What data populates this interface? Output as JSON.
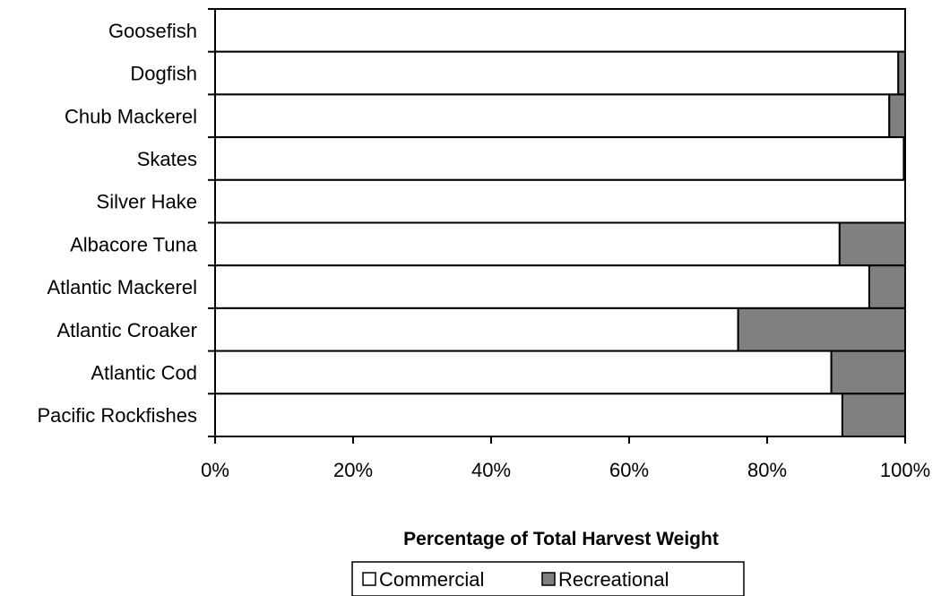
{
  "chart_data": {
    "type": "bar",
    "orientation": "horizontal",
    "stacked": "percent",
    "categories": [
      "Goosefish",
      "Dogfish",
      "Chub Mackerel",
      "Skates",
      "Silver Hake",
      "Albacore Tuna",
      "Atlantic Mackerel",
      "Atlantic Croaker",
      "Atlantic Cod",
      "Pacific Rockfishes"
    ],
    "series": [
      {
        "name": "Commercial",
        "color": "#ffffff",
        "values": [
          100,
          99,
          97.7,
          99.8,
          100,
          90.5,
          94.8,
          75.8,
          89.3,
          90.9
        ]
      },
      {
        "name": "Recreational",
        "color": "#808080",
        "values": [
          0,
          1,
          2.3,
          0.2,
          0,
          9.5,
          5.2,
          24.2,
          10.7,
          9.1
        ]
      }
    ],
    "xlim": [
      0,
      100
    ],
    "x_ticks": [
      "0%",
      "20%",
      "40%",
      "60%",
      "80%",
      "100%"
    ],
    "xlabel": "Percentage of Total Harvest Weight",
    "ylabel": "",
    "title": "",
    "grid": false,
    "legend_position": "bottom"
  }
}
